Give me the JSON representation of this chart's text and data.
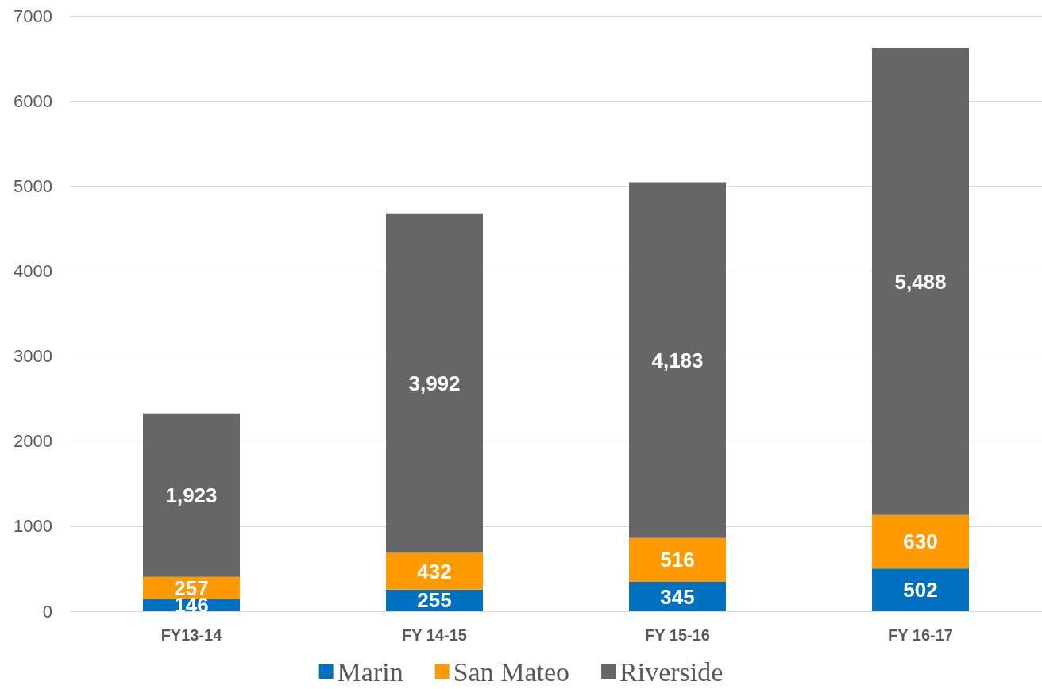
{
  "chart_data": {
    "type": "bar",
    "stacked": true,
    "categories": [
      "FY13-14",
      "FY 14-15",
      "FY 15-16",
      "FY 16-17"
    ],
    "series": [
      {
        "name": "Marin",
        "color": "#0070c0",
        "values": [
          146,
          255,
          345,
          502
        ],
        "value_labels": [
          "146",
          "255",
          "345",
          "502"
        ]
      },
      {
        "name": "San Mateo",
        "color": "#ff9900",
        "values": [
          257,
          432,
          516,
          630
        ],
        "value_labels": [
          "257",
          "432",
          "516",
          "630"
        ]
      },
      {
        "name": "Riverside",
        "color": "#666666",
        "values": [
          1923,
          3992,
          4183,
          5488
        ],
        "value_labels": [
          "1,923",
          "3,992",
          "4,183",
          "5,488"
        ]
      }
    ],
    "ylim": [
      0,
      7000
    ],
    "yticks": [
      0,
      1000,
      2000,
      3000,
      4000,
      5000,
      6000,
      7000
    ],
    "grid": "y",
    "legend": "bottom"
  }
}
